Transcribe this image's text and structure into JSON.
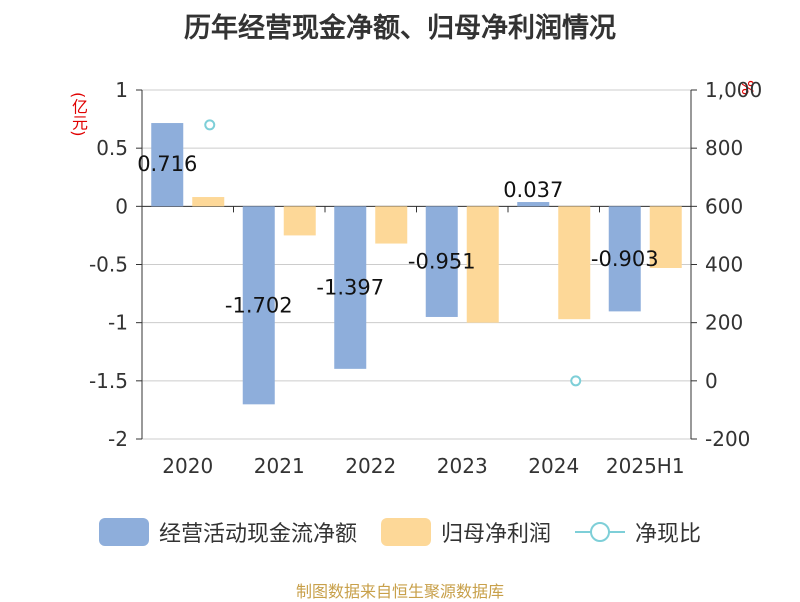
{
  "chart_data": {
    "type": "bar",
    "title": "历年经营现金净额、归母净利润情况",
    "categories": [
      "2020",
      "2021",
      "2022",
      "2023",
      "2024",
      "2025H1"
    ],
    "left_axis": {
      "unit": "(亿元)",
      "ylim": [
        -2,
        1
      ],
      "ticks": [
        "1",
        "0.5",
        "0",
        "-0.5",
        "-1",
        "-1.5",
        "-2"
      ],
      "tick_values": [
        1,
        0.5,
        0,
        -0.5,
        -1,
        -1.5,
        -2
      ]
    },
    "right_axis": {
      "unit": "%",
      "ylim": [
        -200,
        1000
      ],
      "ticks": [
        "1,000",
        "800",
        "600",
        "400",
        "200",
        "0",
        "-200"
      ],
      "tick_values": [
        1000,
        800,
        600,
        400,
        200,
        0,
        -200
      ]
    },
    "series": [
      {
        "name": "经营活动现金流净额",
        "type": "bar",
        "axis": "left",
        "color": "#8eaedb",
        "values": [
          0.716,
          -1.702,
          -1.397,
          -0.951,
          0.037,
          -0.903
        ],
        "labels": [
          "0.716",
          "-1.702",
          "-1.397",
          "-0.951",
          "0.037",
          "-0.903"
        ]
      },
      {
        "name": "归母净利润",
        "type": "bar",
        "axis": "left",
        "color": "#fdd898",
        "values": [
          0.08,
          -0.25,
          -0.32,
          -1.0,
          -0.97,
          -0.53
        ]
      },
      {
        "name": "净现比",
        "type": "scatter",
        "axis": "right",
        "color": "#7ecfd8",
        "values": [
          880,
          null,
          null,
          null,
          0,
          null
        ]
      }
    ],
    "grid": true,
    "legend_position": "bottom"
  },
  "source": "制图数据来自恒生聚源数据库"
}
